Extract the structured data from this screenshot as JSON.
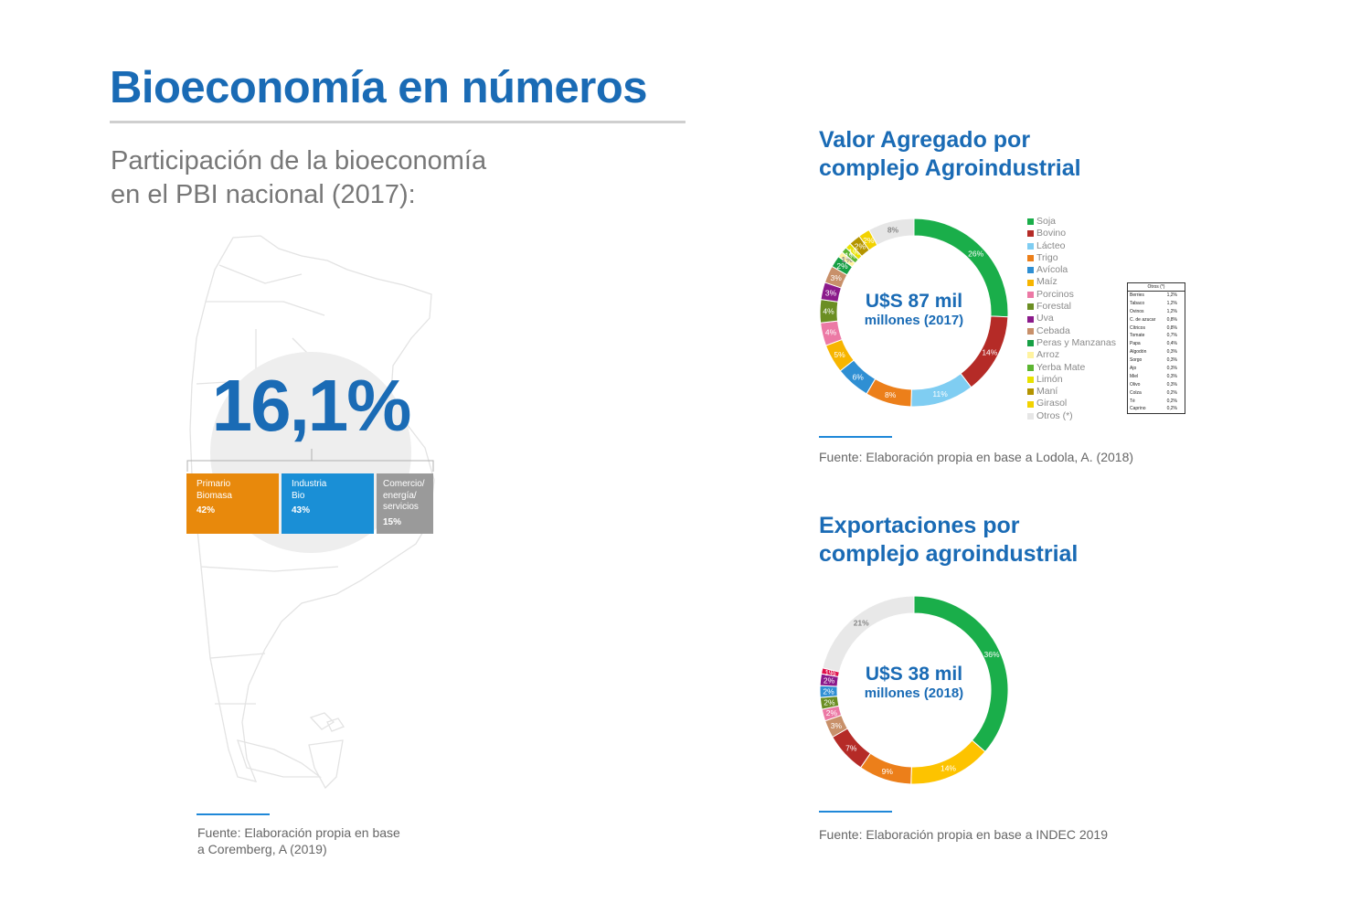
{
  "title": "Bioeconomía en números",
  "subtitle": {
    "line1": "Participación de la bioeconomía",
    "line2": "en el PBI nacional (2017):"
  },
  "pbi_share": {
    "value": "16,1%",
    "segments": [
      {
        "line1": "Primario",
        "line2": "Biomasa",
        "line3": "",
        "pct": "42%",
        "color": "#e8890c"
      },
      {
        "line1": "Industria",
        "line2": "Bio",
        "line3": "",
        "pct": "43%",
        "color": "#1a8fd6"
      },
      {
        "line1": "Comercio/",
        "line2": "energía/",
        "line3": "servicios",
        "pct": "15%",
        "color": "#9a9a9a"
      }
    ],
    "source_line1": "Fuente: Elaboración propia en base",
    "source_line2": "a Coremberg, A (2019)"
  },
  "chart_data": [
    {
      "type": "pie",
      "title": "Valor Agregado por complejo Agroindustrial",
      "title_line1": "Valor Agregado por",
      "title_line2": "complejo Agroindustrial",
      "center_line1": "U$S 87 mil",
      "center_line2": "millones (2017)",
      "legend_placement": "right",
      "slices": [
        {
          "label": "Soja",
          "value": 26,
          "text": "26%",
          "color": "#1aae4a"
        },
        {
          "label": "Bovino",
          "value": 14,
          "text": "14%",
          "color": "#b52b27"
        },
        {
          "label": "Lácteo",
          "value": 11,
          "text": "11%",
          "color": "#7fcdf2"
        },
        {
          "label": "Trigo",
          "value": 8,
          "text": "8%",
          "color": "#ec7f1a"
        },
        {
          "label": "Avícola",
          "value": 6,
          "text": "6%",
          "color": "#2f8fd3"
        },
        {
          "label": "Maíz",
          "value": 5,
          "text": "5%",
          "color": "#f7b500"
        },
        {
          "label": "Porcinos",
          "value": 4,
          "text": "4%",
          "color": "#ec79a5"
        },
        {
          "label": "Forestal",
          "value": 4,
          "text": "4%",
          "color": "#6b8e23"
        },
        {
          "label": "Uva",
          "value": 3,
          "text": "3%",
          "color": "#8b1a8b"
        },
        {
          "label": "Cebada",
          "value": 3,
          "text": "3%",
          "color": "#c8906a"
        },
        {
          "label": "Peras y Manzanas",
          "value": 2,
          "text": "2%",
          "color": "#17a045"
        },
        {
          "label": "Arroz",
          "value": 1,
          "text": "1%",
          "color": "#fff3a0"
        },
        {
          "label": "Yerba Mate",
          "value": 1,
          "text": "1%",
          "color": "#5cb531"
        },
        {
          "label": "Limón",
          "value": 1,
          "text": "1%",
          "color": "#e8e200"
        },
        {
          "label": "Maní",
          "value": 2,
          "text": "2%",
          "color": "#b49400"
        },
        {
          "label": "Girasol",
          "value": 2,
          "text": "2%",
          "color": "#f2d200"
        },
        {
          "label": "Otros (*)",
          "value": 8,
          "text": "8%",
          "color": "#e6e6e6"
        }
      ],
      "otros_table": {
        "header": "Otros (*)",
        "rows": [
          [
            "Berries",
            "1,2%"
          ],
          [
            "Tabaco",
            "1,2%"
          ],
          [
            "Ovinos",
            "1,2%"
          ],
          [
            "C. de azucar",
            "0,8%"
          ],
          [
            "Cítricos",
            "0,8%"
          ],
          [
            "Tomate",
            "0,7%"
          ],
          [
            "Papa",
            "0,4%"
          ],
          [
            "Algodón",
            "0,3%"
          ],
          [
            "Sorgo",
            "0,3%"
          ],
          [
            "Ajo",
            "0,3%"
          ],
          [
            "Miel",
            "0,3%"
          ],
          [
            "Olivo",
            "0,3%"
          ],
          [
            "Colza",
            "0,2%"
          ],
          [
            "Té",
            "0,2%"
          ],
          [
            "Caprino",
            "0,2%"
          ]
        ]
      },
      "source": "Fuente: Elaboración propia en base a Lodola, A. (2018)"
    },
    {
      "type": "pie",
      "title": "Exportaciones por complejo agroindustrial",
      "title_line1": "Exportaciones por",
      "title_line2": "complejo agroindustrial",
      "center_line1": "U$S 38 mil",
      "center_line2": "millones (2018)",
      "slices": [
        {
          "value": 36,
          "text": "36%",
          "color": "#1aae4a"
        },
        {
          "value": 14,
          "text": "14%",
          "color": "#fdc300"
        },
        {
          "value": 9,
          "text": "9%",
          "color": "#ec7f1a"
        },
        {
          "value": 7,
          "text": "7%",
          "color": "#b52b27"
        },
        {
          "value": 3,
          "text": "3%",
          "color": "#c8906a"
        },
        {
          "value": 2,
          "text": "2%",
          "color": "#ec79a5"
        },
        {
          "value": 2,
          "text": "2%",
          "color": "#6b8e23"
        },
        {
          "value": 2,
          "text": "2%",
          "color": "#2f8fd3"
        },
        {
          "value": 2,
          "text": "2%",
          "color": "#8b1a8b"
        },
        {
          "value": 1,
          "text": "1%",
          "color": "#e0104a"
        },
        {
          "value": 21,
          "text": "21%",
          "color": "#e8e8e8"
        }
      ],
      "source": "Fuente: Elaboración propia en base a INDEC 2019"
    }
  ]
}
